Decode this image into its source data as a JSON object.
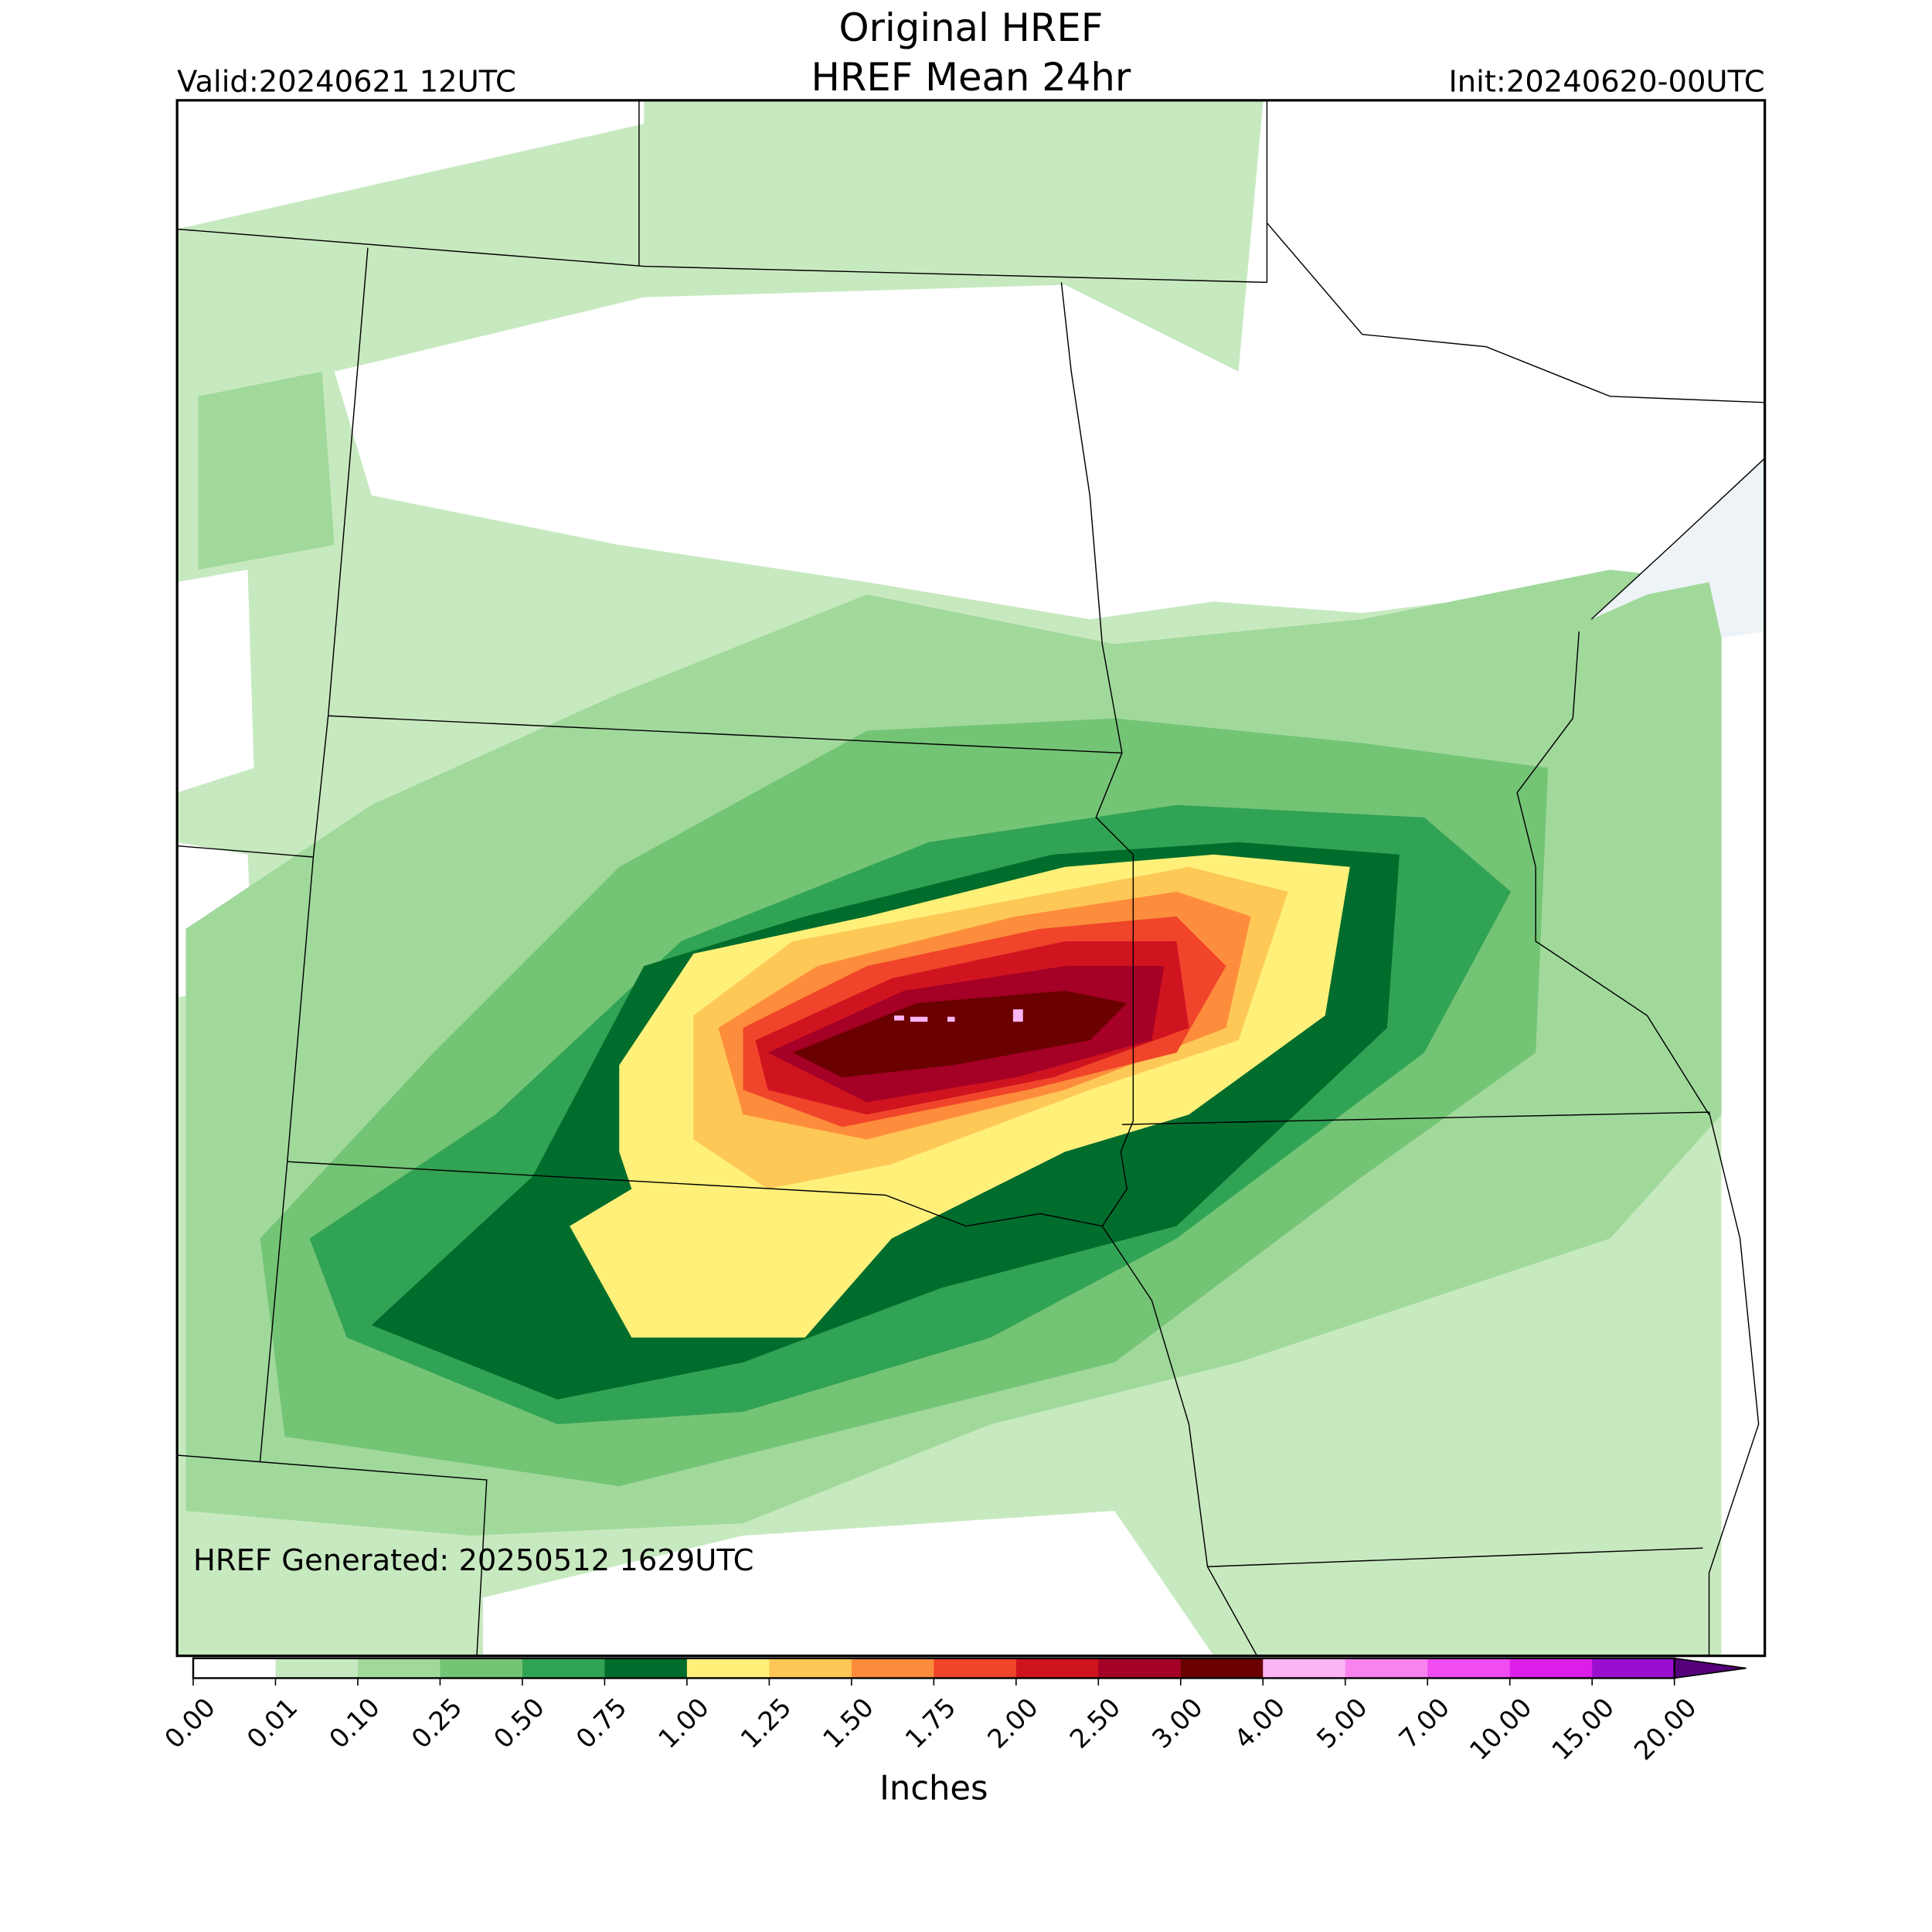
{
  "header": {
    "title": "Original HREF",
    "subtitle": "HREF Mean 24hr",
    "valid": "Valid:20240621 12UTC",
    "init": "Init:20240620-00UTC"
  },
  "map": {
    "annotation": "HREF Generated: 20250512 1629UTC"
  },
  "colorbar": {
    "label": "Inches",
    "ticks": [
      "0.00",
      "0.01",
      "0.10",
      "0.25",
      "0.50",
      "0.75",
      "1.00",
      "1.25",
      "1.50",
      "1.75",
      "2.00",
      "2.50",
      "3.00",
      "4.00",
      "5.00",
      "7.00",
      "10.00",
      "15.00",
      "20.00"
    ],
    "colors": [
      "#ffffff",
      "#c7e9c0",
      "#a1d99b",
      "#74c476",
      "#31a354",
      "#006d2c",
      "#fff07a",
      "#fec857",
      "#fd8d3c",
      "#f0452a",
      "#d0141f",
      "#a50026",
      "#6b0000",
      "#fbb4f4",
      "#f883ee",
      "#f04cf0",
      "#dc1ee8",
      "#9a0fcf",
      "#55007a"
    ]
  }
}
